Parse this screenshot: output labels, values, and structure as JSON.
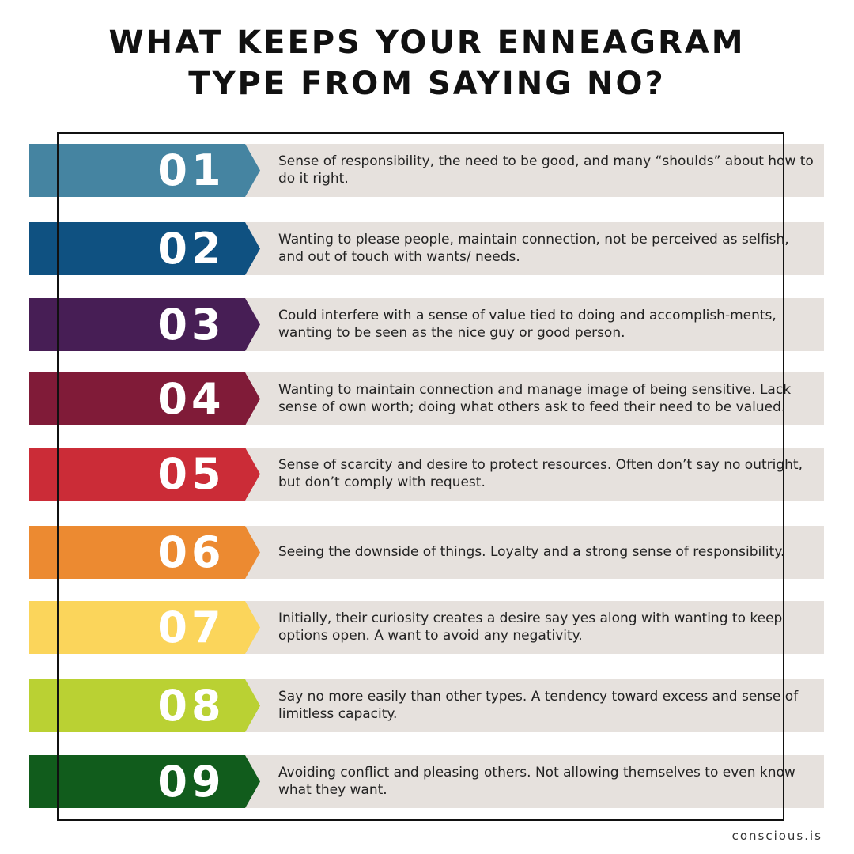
{
  "title": {
    "line1": "WHAT KEEPS YOUR ENNEAGRAM",
    "line2": "TYPE FROM SAYING NO?"
  },
  "types": [
    {
      "number": "01",
      "color": "#4584a1",
      "description": "Sense of responsibility, the need to be good, and many “shoulds” about how to do it right."
    },
    {
      "number": "02",
      "color": "#0f5181",
      "description": "Wanting to please people, maintain connection, not be perceived as selfish, and out of touch with wants/ needs."
    },
    {
      "number": "03",
      "color": "#471e55",
      "description": "Could interfere with a sense of value tied to doing and accomplish-ments, wanting to be seen as the nice guy or good person."
    },
    {
      "number": "04",
      "color": "#801b38",
      "description": "Wanting to maintain connection and manage image of being sensitive. Lack sense of own worth; doing what others ask to feed their need to be valued."
    },
    {
      "number": "05",
      "color": "#cb2c37",
      "description": "Sense of scarcity and desire to protect resources. Often don’t say no outright, but don’t comply with request."
    },
    {
      "number": "06",
      "color": "#ec8a31",
      "description": "Seeing the downside of things. Loyalty and a strong sense of responsibility."
    },
    {
      "number": "07",
      "color": "#fbd55b",
      "description": "Initially, their curiosity creates a desire say yes along with wanting to keep options open. A want to avoid any negativity."
    },
    {
      "number": "08",
      "color": "#bad133",
      "description": "Say no more easily than other types. A tendency toward excess and sense of limitless capacity."
    },
    {
      "number": "09",
      "color": "#115c1c",
      "description": "Avoiding conflict and pleasing others. Not allowing themselves to even know what they want."
    }
  ],
  "footer": "conscious.is"
}
